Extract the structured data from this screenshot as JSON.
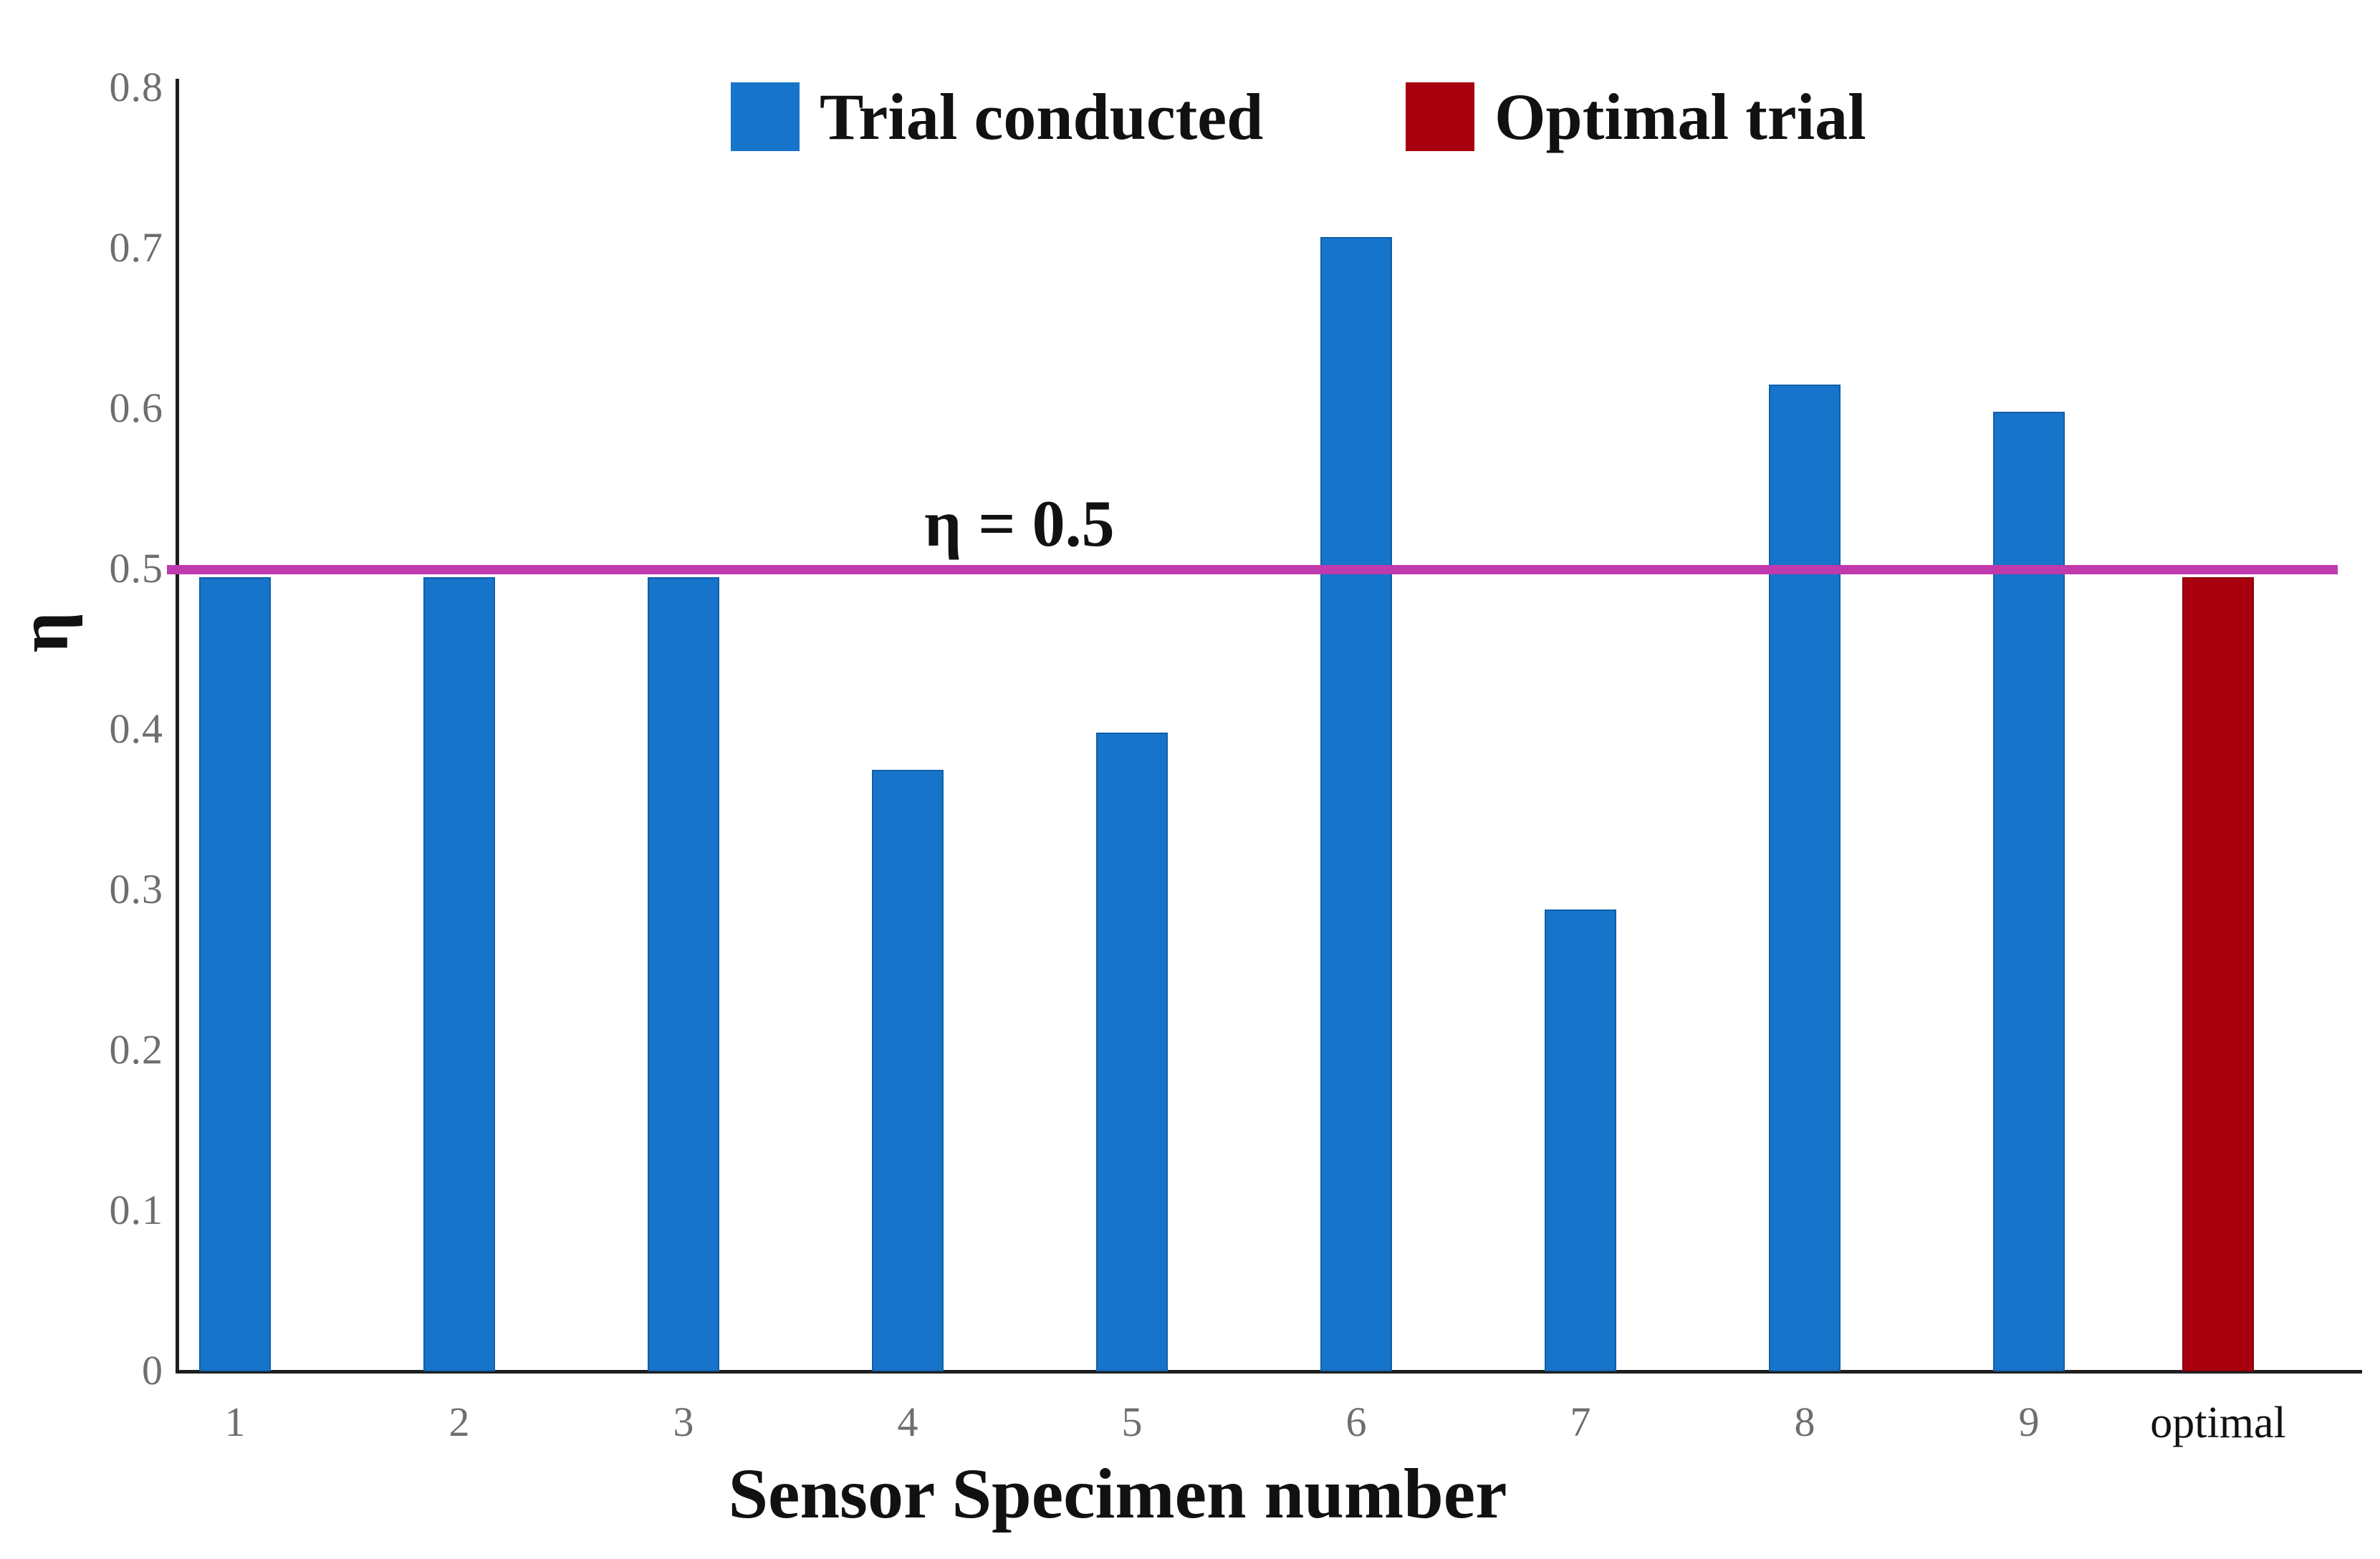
{
  "chart_data": {
    "type": "bar",
    "title": "",
    "xlabel": "Sensor Specimen number",
    "ylabel": "η",
    "categories": [
      "1",
      "2",
      "3",
      "4",
      "5",
      "6",
      "7",
      "8",
      "9",
      "optimal"
    ],
    "values": [
      0.495,
      0.495,
      0.495,
      0.375,
      0.398,
      0.707,
      0.288,
      0.615,
      0.598,
      0.495
    ],
    "bar_series": [
      "trial",
      "trial",
      "trial",
      "trial",
      "trial",
      "trial",
      "trial",
      "trial",
      "trial",
      "optimal"
    ],
    "ylim": [
      0,
      0.8
    ],
    "ytick_labels": [
      "0",
      "0.1",
      "0.2",
      "0.3",
      "0.4",
      "0.5",
      "0.6",
      "0.7",
      "0.8"
    ],
    "grid": false,
    "legend_position": "top-center-inside",
    "legend": [
      {
        "label": "Trial conducted",
        "series": "trial"
      },
      {
        "label": "Optimal trial",
        "series": "optimal"
      }
    ],
    "reference_line": {
      "value": 0.5,
      "label": "η = 0.5"
    }
  },
  "colors": {
    "trial": "#1774CB",
    "optimal": "#A8000F",
    "ref_line": "#C039AD",
    "axis": "#1F1F1F",
    "tick_label": "#6E6E6E"
  }
}
